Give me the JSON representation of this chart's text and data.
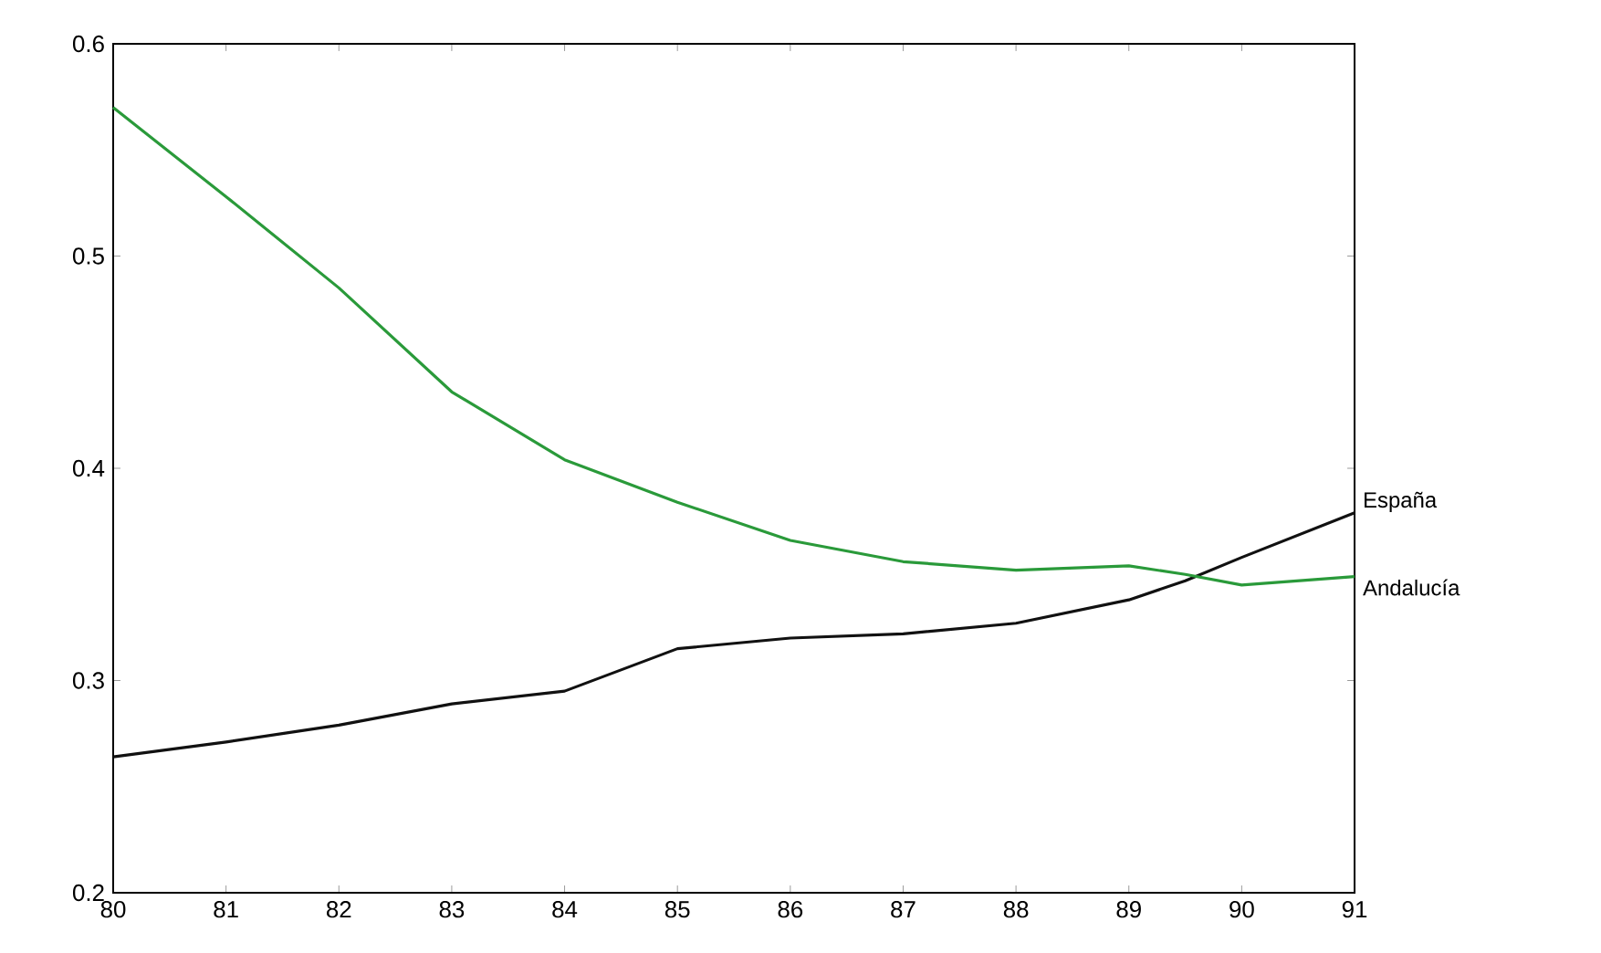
{
  "chart_data": {
    "type": "line",
    "x": [
      80,
      81,
      82,
      83,
      84,
      85,
      86,
      87,
      88,
      89,
      89.5,
      90,
      91
    ],
    "series": [
      {
        "name": "España",
        "color": "#111111",
        "values": [
          0.264,
          0.271,
          0.279,
          0.289,
          0.295,
          0.315,
          0.32,
          0.322,
          0.327,
          0.338,
          0.347,
          0.358,
          0.379
        ]
      },
      {
        "name": "Andalucía",
        "color": "#2a9a3a",
        "values": [
          0.57,
          0.528,
          0.485,
          0.436,
          0.404,
          0.384,
          0.366,
          0.356,
          0.352,
          0.354,
          0.35,
          0.345,
          0.349
        ]
      }
    ],
    "xlim": [
      80,
      91
    ],
    "ylim": [
      0.2,
      0.6
    ],
    "xticks": [
      80,
      81,
      82,
      83,
      84,
      85,
      86,
      87,
      88,
      89,
      90,
      91
    ],
    "yticks": [
      0.2,
      0.3,
      0.4,
      0.5,
      0.6
    ],
    "grid": false,
    "legend": false,
    "marker": "none",
    "line_style": "solid"
  }
}
